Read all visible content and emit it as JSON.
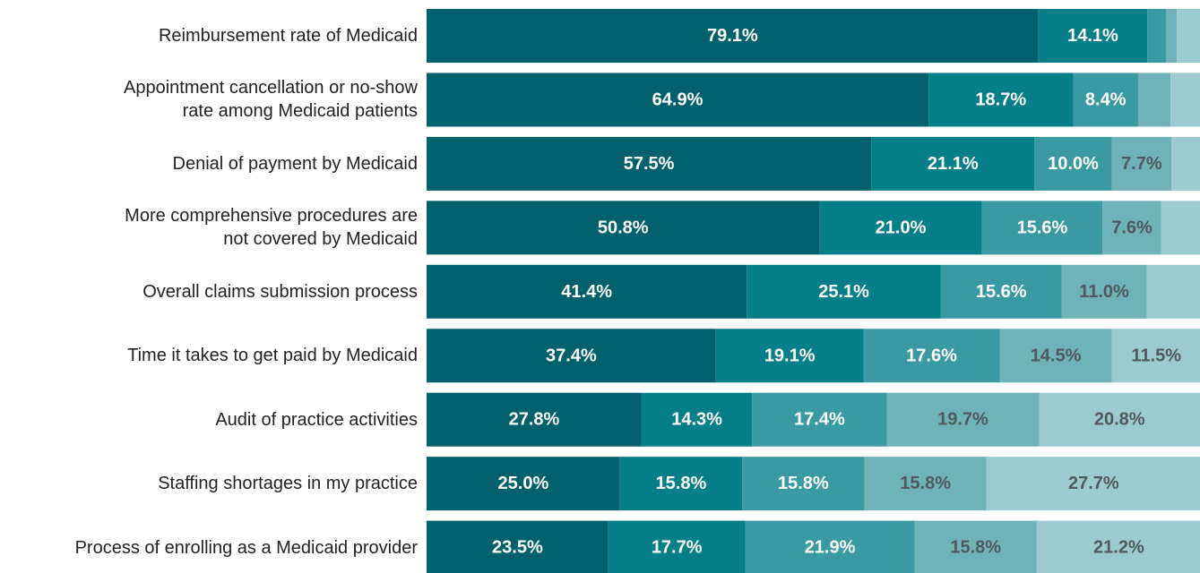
{
  "chart_data": {
    "type": "stacked-bar-horizontal",
    "categories": [
      "Reimbursement rate of Medicaid",
      "Appointment cancellation or no-show\nrate among Medicaid patients",
      "Denial of payment by Medicaid",
      "More comprehensive procedures are\nnot covered by Medicaid",
      "Overall claims submission process",
      "Time it takes to get paid by Medicaid",
      "Audit of practice activities",
      "Staffing shortages in my practice",
      "Process of enrolling as a Medicaid provider"
    ],
    "xlim": [
      0,
      100
    ],
    "series": [
      {
        "color": "#03616e",
        "label_color": "#ffffff",
        "values": [
          79.1,
          64.9,
          57.5,
          50.8,
          41.4,
          37.4,
          27.8,
          25.0,
          23.5
        ],
        "value_labels": [
          "79.1%",
          "64.9%",
          "57.5%",
          "50.8%",
          "41.4%",
          "37.4%",
          "27.8%",
          "25.0%",
          "23.5%"
        ]
      },
      {
        "color": "#077f89",
        "label_color": "#ffffff",
        "values": [
          14.1,
          18.7,
          21.1,
          21.0,
          25.1,
          19.1,
          14.3,
          15.8,
          17.7
        ],
        "value_labels": [
          "14.1%",
          "18.7%",
          "21.1%",
          "21.0%",
          "25.1%",
          "19.1%",
          "14.3%",
          "15.8%",
          "17.7%"
        ]
      },
      {
        "color": "#3a9aa3",
        "label_color": "#ffffff",
        "values": [
          2.4,
          8.4,
          10.0,
          15.6,
          15.6,
          17.6,
          17.4,
          15.8,
          21.9
        ],
        "value_labels": [
          null,
          "8.4%",
          "10.0%",
          "15.6%",
          "15.6%",
          "17.6%",
          "17.4%",
          "15.8%",
          "21.9%"
        ]
      },
      {
        "color": "#6fb3b9",
        "label_color": "#4f5a5c",
        "values": [
          1.4,
          4.2,
          7.7,
          7.6,
          11.0,
          14.5,
          19.7,
          15.8,
          15.8
        ],
        "value_labels": [
          null,
          null,
          "7.7%",
          "7.6%",
          "11.0%",
          "14.5%",
          "19.7%",
          "15.8%",
          "15.8%"
        ]
      },
      {
        "color": "#9ccbcf",
        "label_color": "#4f5a5c",
        "values": [
          3.1,
          3.8,
          3.7,
          5.0,
          6.9,
          11.5,
          20.8,
          27.7,
          21.2
        ],
        "value_labels": [
          null,
          null,
          null,
          null,
          null,
          "11.5%",
          "20.8%",
          "27.7%",
          "21.2%"
        ]
      }
    ]
  }
}
